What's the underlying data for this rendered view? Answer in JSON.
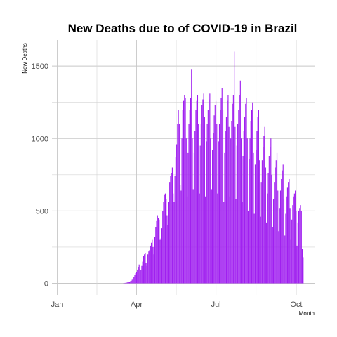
{
  "chart_data": {
    "type": "bar",
    "title": "New Deaths due to of COVID-19 in Brazil",
    "xlabel": "Month",
    "ylabel": "New Deaths",
    "bar_color": "#a020f0",
    "grid": true,
    "legend": "none",
    "x_range": [
      "2019-12-26",
      "2020-10-22"
    ],
    "ylim": [
      -80,
      1680
    ],
    "x_ticks": [
      {
        "label": "Jan",
        "date": "2020-01-01"
      },
      {
        "label": "Apr",
        "date": "2020-04-01"
      },
      {
        "label": "Jul",
        "date": "2020-07-01"
      },
      {
        "label": "Oct",
        "date": "2020-10-01"
      }
    ],
    "y_ticks": [
      0,
      500,
      1000,
      1500
    ],
    "series": [
      {
        "start_date": "2020-03-17",
        "values": [
          1,
          2,
          3,
          4,
          5,
          8,
          10,
          12,
          15,
          18,
          25,
          35,
          42,
          60,
          70,
          80,
          95,
          110,
          130,
          100,
          90,
          120,
          150,
          190,
          200,
          210,
          140,
          120,
          200,
          220,
          230,
          260,
          280,
          300,
          250,
          200,
          320,
          390,
          430,
          470,
          450,
          440,
          300,
          310,
          380,
          500,
          560,
          610,
          620,
          580,
          470,
          400,
          560,
          700,
          740,
          760,
          800,
          620,
          560,
          740,
          870,
          960,
          1100,
          1200,
          1100,
          680,
          640,
          1000,
          1200,
          1260,
          1300,
          1280,
          1000,
          600,
          900,
          1100,
          1200,
          1280,
          1480,
          1000,
          650,
          900,
          1050,
          1200,
          1260,
          1300,
          1100,
          620,
          950,
          1100,
          1230,
          1270,
          1310,
          1150,
          600,
          980,
          1100,
          1200,
          1270,
          1310,
          1000,
          650,
          920,
          1040,
          1160,
          1230,
          1260,
          1100,
          620,
          980,
          1100,
          1200,
          1280,
          1350,
          1200,
          560,
          900,
          1050,
          1150,
          1260,
          1300,
          1080,
          600,
          1000,
          1120,
          1240,
          1300,
          1600,
          1080,
          580,
          950,
          1100,
          1200,
          1300,
          1400,
          1000,
          560,
          880,
          1050,
          1150,
          1240,
          1280,
          1000,
          500,
          860,
          1000,
          1120,
          1200,
          1250,
          900,
          480,
          820,
          920,
          1050,
          1150,
          1200,
          850,
          460,
          700,
          850,
          940,
          1020,
          1080,
          800,
          420,
          620,
          760,
          880,
          940,
          1000,
          750,
          390,
          580,
          700,
          800,
          850,
          900,
          640,
          360,
          520,
          640,
          720,
          780,
          820,
          580,
          330,
          480,
          600,
          660,
          700,
          720,
          520,
          300,
          440,
          540,
          600,
          620,
          640,
          500,
          260,
          420,
          500,
          520,
          540,
          500,
          240,
          180
        ]
      }
    ]
  }
}
